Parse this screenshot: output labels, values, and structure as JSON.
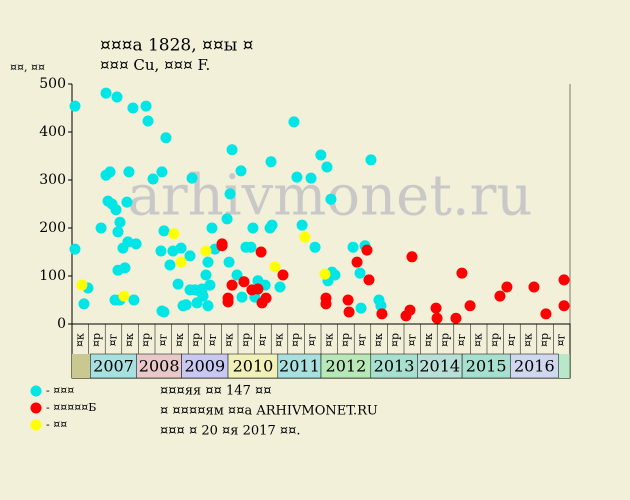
{
  "chart_data": {
    "type": "scatter",
    "title": "¤¤¤а 1828, ¤¤ы ¤",
    "subtitle": "¤¤¤ Cu, ¤¤¤ F.",
    "y_label": "¤¤, ¤¤",
    "watermark": "arhivmonet.ru",
    "xlim": [
      0,
      30
    ],
    "ylim": [
      0,
      500
    ],
    "yticks": [
      0,
      100,
      200,
      300,
      400,
      500
    ],
    "xticks": [
      {
        "value": 0.5,
        "label": "¤к"
      },
      {
        "value": 1.5,
        "label": "¤р"
      },
      {
        "value": 2.5,
        "label": "¤г"
      },
      {
        "value": 3.5,
        "label": "¤к"
      },
      {
        "value": 4.5,
        "label": "¤р"
      },
      {
        "value": 5.5,
        "label": "¤г"
      },
      {
        "value": 6.5,
        "label": "¤к"
      },
      {
        "value": 7.5,
        "label": "¤р"
      },
      {
        "value": 8.5,
        "label": "¤г"
      },
      {
        "value": 9.5,
        "label": "¤к"
      },
      {
        "value": 10.5,
        "label": "¤р"
      },
      {
        "value": 11.5,
        "label": "¤г"
      },
      {
        "value": 12.5,
        "label": "¤к"
      },
      {
        "value": 13.5,
        "label": "¤р"
      },
      {
        "value": 14.5,
        "label": "¤г"
      },
      {
        "value": 15.5,
        "label": "¤к"
      },
      {
        "value": 16.5,
        "label": "¤р"
      },
      {
        "value": 17.5,
        "label": "¤г"
      },
      {
        "value": 18.5,
        "label": "¤к"
      },
      {
        "value": 19.5,
        "label": "¤р"
      },
      {
        "value": 20.5,
        "label": "¤г"
      },
      {
        "value": 21.5,
        "label": "¤к"
      },
      {
        "value": 22.5,
        "label": "¤р"
      },
      {
        "value": 23.5,
        "label": "¤г"
      },
      {
        "value": 24.5,
        "label": "¤к"
      },
      {
        "value": 25.5,
        "label": "¤р"
      },
      {
        "value": 26.5,
        "label": "¤г"
      },
      {
        "value": 27.5,
        "label": "¤к"
      },
      {
        "value": 28.5,
        "label": "¤р"
      },
      {
        "value": 29.5,
        "label": "¤г"
      }
    ],
    "year_groups": [
      {
        "label": "2007",
        "from": 1.1,
        "to": 3.9,
        "color": "#a8e0e0"
      },
      {
        "label": "2008",
        "from": 3.9,
        "to": 6.6,
        "color": "#e8c8c8"
      },
      {
        "label": "2009",
        "from": 6.6,
        "to": 9.4,
        "color": "#c8c8f0"
      },
      {
        "label": "2010",
        "from": 9.4,
        "to": 12.4,
        "color": "#f0f0b8"
      },
      {
        "label": "2011",
        "from": 12.4,
        "to": 15.0,
        "color": "#a8e0e0"
      },
      {
        "label": "2012",
        "from": 15.0,
        "to": 18.0,
        "color": "#b8e8b8"
      },
      {
        "label": "2013",
        "from": 18.0,
        "to": 20.8,
        "color": "#a8e0d0"
      },
      {
        "label": "2014",
        "from": 20.8,
        "to": 23.5,
        "color": "#b8e0d8"
      },
      {
        "label": "2015",
        "from": 23.5,
        "to": 26.4,
        "color": "#a8e0d0"
      },
      {
        "label": "2016",
        "from": 26.4,
        "to": 29.3,
        "color": "#d0d8f0"
      }
    ],
    "series": [
      {
        "name": "- ¤¤¤",
        "color": "#00e5e5",
        "x": [
          0.18,
          0.18,
          0.72,
          0.96,
          1.75,
          2.05,
          2.05,
          2.29,
          2.17,
          2.41,
          2.71,
          2.65,
          2.77,
          2.89,
          2.77,
          2.59,
          2.89,
          3.07,
          3.19,
          3.31,
          3.43,
          3.37,
          3.67,
          3.73,
          3.86,
          4.46,
          4.58,
          4.88,
          5.36,
          5.42,
          5.54,
          5.66,
          5.42,
          5.54,
          5.9,
          6.08,
          6.39,
          6.57,
          6.69,
          6.87,
          7.11,
          7.23,
          7.11,
          7.41,
          7.53,
          7.65,
          7.83,
          7.89,
          8.07,
          8.19,
          8.19,
          8.31,
          8.43,
          8.61,
          9.34,
          9.46,
          9.52,
          9.64,
          9.94,
          10.18,
          10.24,
          10.48,
          10.78,
          10.9,
          11.02,
          11.2,
          11.63,
          11.93,
          12.05,
          11.99,
          12.53,
          13.37,
          13.55,
          13.86,
          14.4,
          14.64,
          14.99,
          15.36,
          15.6,
          15.66,
          15.84,
          15.42,
          16.93,
          17.35,
          17.41,
          17.65,
          18.01,
          18.49,
          18.61
        ],
        "values": [
          156,
          454,
          42,
          75,
          200,
          481,
          310,
          317,
          256,
          250,
          473,
          238,
          192,
          212,
          112,
          50,
          50,
          158,
          117,
          254,
          317,
          171,
          450,
          50,
          167,
          454,
          423,
          302,
          152,
          317,
          194,
          388,
          27,
          25,
          123,
          152,
          83,
          158,
          38,
          40,
          71,
          304,
          142,
          71,
          44,
          69,
          73,
          58,
          102,
          129,
          38,
          81,
          200,
          156,
          219,
          129,
          271,
          363,
          102,
          319,
          56,
          160,
          160,
          200,
          56,
          90,
          81,
          200,
          206,
          338,
          77,
          421,
          306,
          206,
          304,
          160,
          352,
          327,
          260,
          108,
          102,
          90,
          160,
          106,
          33,
          163,
          342,
          50,
          38
        ]
      },
      {
        "name": "- ¤¤¤¤¤Б",
        "color": "#ff0000",
        "x": [
          9.04,
          9.04,
          9.4,
          9.4,
          9.64,
          10.36,
          10.84,
          11.2,
          11.39,
          11.45,
          11.69,
          12.71,
          15.3,
          15.3,
          16.63,
          16.69,
          17.17,
          17.77,
          17.89,
          18.67,
          20.12,
          20.36,
          20.48,
          21.93,
          21.99,
          23.13,
          23.49,
          23.98,
          25.78,
          26.2,
          27.83,
          28.55,
          29.64,
          29.64
        ],
        "values": [
          167,
          163,
          54,
          46,
          81,
          88,
          71,
          73,
          150,
          44,
          54,
          102,
          54,
          42,
          50,
          25,
          129,
          154,
          92,
          21,
          17,
          29,
          140,
          33,
          12,
          12,
          106,
          38,
          58,
          77,
          77,
          21,
          92,
          38
        ]
      },
      {
        "name": "- ¤¤",
        "color": "#ffff00",
        "x": [
          0.6,
          3.13,
          6.14,
          6.57,
          8.07,
          12.23,
          14.03,
          15.24
        ],
        "values": [
          81,
          58,
          188,
          129,
          152,
          119,
          181,
          104
        ]
      }
    ],
    "notes": [
      "¤¤¤яя ¤¤ 147 ¤¤",
      "¤ ¤¤¤¤ям ¤¤а ARHIVMONET.RU",
      "¤¤¤ ¤ 20 ¤я 2017 ¤¤."
    ]
  }
}
